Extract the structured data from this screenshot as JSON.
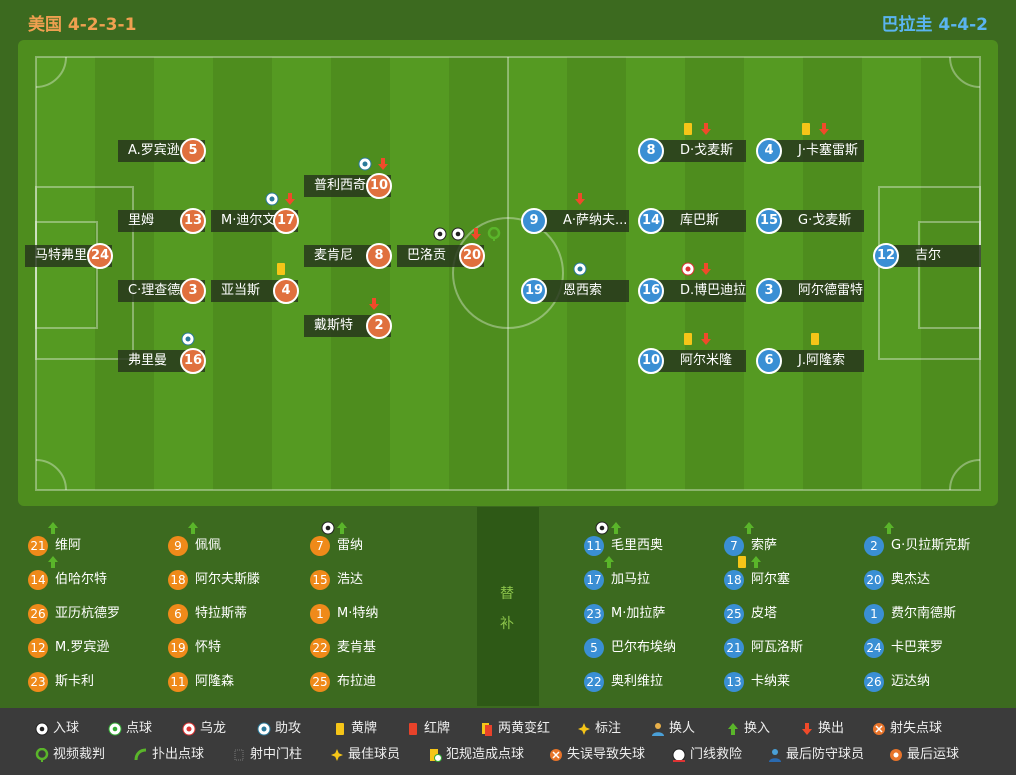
{
  "header": {
    "home": "美国 4-2-3-1",
    "away": "巴拉圭 4-4-2"
  },
  "home": {
    "players": [
      {
        "name": "A.罗宾逊",
        "number": 5
      },
      {
        "name": "里姆",
        "number": 13
      },
      {
        "name": "C·理查德.",
        "number": 3
      },
      {
        "name": "弗里曼",
        "number": 16
      },
      {
        "name": "马特弗里",
        "number": 24
      },
      {
        "name": "M·迪尔文",
        "number": 17
      },
      {
        "name": "亚当斯",
        "number": 4
      },
      {
        "name": "普利西奇",
        "number": 10
      },
      {
        "name": "麦肯尼",
        "number": 8
      },
      {
        "name": "戴斯特",
        "number": 2
      },
      {
        "name": "巴洛贡",
        "number": 20
      }
    ],
    "subs": [
      {
        "name": "维阿",
        "number": 21
      },
      {
        "name": "伯哈尔特",
        "number": 14
      },
      {
        "name": "亚历杭德罗",
        "number": 26
      },
      {
        "name": "M.罗宾逊",
        "number": 12
      },
      {
        "name": "斯卡利",
        "number": 23
      },
      {
        "name": "佩佩",
        "number": 9
      },
      {
        "name": "阿尔夫斯滕",
        "number": 18
      },
      {
        "name": "特拉斯蒂",
        "number": 6
      },
      {
        "name": "怀特",
        "number": 19
      },
      {
        "name": "阿隆森",
        "number": 11
      },
      {
        "name": "雷纳",
        "number": 7
      },
      {
        "name": "浩达",
        "number": 15
      },
      {
        "name": "M·特纳",
        "number": 1
      },
      {
        "name": "麦肯基",
        "number": 22
      },
      {
        "name": "布拉迪",
        "number": 25
      }
    ]
  },
  "away": {
    "players": [
      {
        "name": "D·戈麦斯",
        "number": 8
      },
      {
        "name": "J·卡塞雷斯",
        "number": 4
      },
      {
        "name": "A·萨纳夫...",
        "number": 9
      },
      {
        "name": "库巴斯",
        "number": 14
      },
      {
        "name": "G·戈麦斯",
        "number": 15
      },
      {
        "name": "吉尔",
        "number": 12
      },
      {
        "name": "恩西索",
        "number": 19
      },
      {
        "name": "D.博巴迪拉",
        "number": 16
      },
      {
        "name": "阿尔德雷特",
        "number": 3
      },
      {
        "name": "阿尔米隆",
        "number": 10
      },
      {
        "name": "J.阿隆索",
        "number": 6
      }
    ],
    "subs": [
      {
        "name": "毛里西奥",
        "number": 11
      },
      {
        "name": "加马拉",
        "number": 17
      },
      {
        "name": "M·加拉萨",
        "number": 23
      },
      {
        "name": "巴尔布埃纳",
        "number": 5
      },
      {
        "name": "奥利维拉",
        "number": 22
      },
      {
        "name": "索萨",
        "number": 7
      },
      {
        "name": "阿尔塞",
        "number": 18
      },
      {
        "name": "皮塔",
        "number": 25
      },
      {
        "name": "阿瓦洛斯",
        "number": 21
      },
      {
        "name": "卡纳莱",
        "number": 13
      },
      {
        "name": "G·贝拉斯克斯",
        "number": 2
      },
      {
        "name": "奥杰达",
        "number": 20
      },
      {
        "name": "费尔南德斯",
        "number": 1
      },
      {
        "name": "卡巴莱罗",
        "number": 24
      },
      {
        "name": "迈达纳",
        "number": 26
      }
    ]
  },
  "subs_label": [
    "替",
    "补"
  ],
  "legend": [
    "入球",
    "点球",
    "乌龙",
    "助攻",
    "黄牌",
    "红牌",
    "两黄变红",
    "标注",
    "换人",
    "换入",
    "换出",
    "射失点球",
    "视频裁判",
    "扑出点球",
    "射中门柱",
    "最佳球员",
    "犯规造成点球",
    "失误导致失球",
    "门线救险",
    "最后防守球员",
    "最后运球"
  ]
}
